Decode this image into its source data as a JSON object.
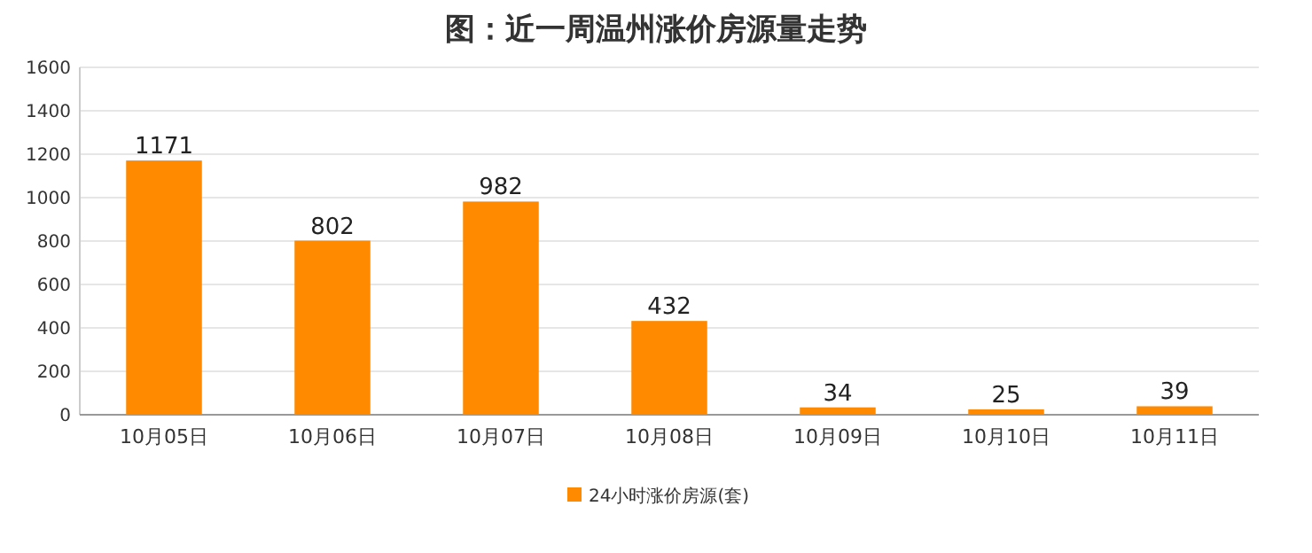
{
  "chart_data": {
    "type": "bar",
    "title": "图：近一周温州涨价房源量走势",
    "categories": [
      "10月05日",
      "10月06日",
      "10月07日",
      "10月08日",
      "10月09日",
      "10月10日",
      "10月11日"
    ],
    "series": [
      {
        "name": "24小时涨价房源(套)",
        "color": "#ff8a00",
        "values": [
          1171,
          802,
          982,
          432,
          34,
          25,
          39
        ]
      }
    ],
    "ylim": [
      0,
      1600
    ],
    "yticks": [
      0,
      200,
      400,
      600,
      800,
      1000,
      1200,
      1400,
      1600
    ],
    "grid": "y",
    "legend": "bottom",
    "data_labels": true
  }
}
